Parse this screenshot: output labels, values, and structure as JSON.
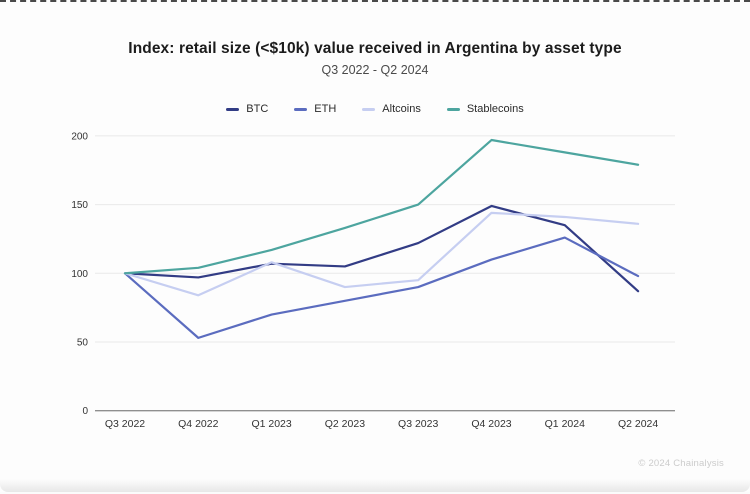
{
  "header": {
    "title": "Index: retail size (<$10k) value received in Argentina by asset type",
    "subtitle": "Q3 2022 - Q2 2024"
  },
  "footer": {
    "credit": "© 2024 Chainalysis"
  },
  "colors": {
    "btc": "#323c85",
    "eth": "#5b6cbf",
    "altcoins": "#c6cef1",
    "stablecoins": "#4da59f",
    "gridline": "#e9e9e9",
    "axis_line": "#8f8f8f",
    "tick_label": "#333333"
  },
  "chart_data": {
    "type": "line",
    "title": "Index: retail size (<$10k) value received in Argentina by asset type",
    "subtitle": "Q3 2022 - Q2 2024",
    "categories": [
      "Q3 2022",
      "Q4 2022",
      "Q1 2023",
      "Q2 2023",
      "Q3 2023",
      "Q4 2023",
      "Q1 2024",
      "Q2 2024"
    ],
    "series": [
      {
        "name": "BTC",
        "color": "#323c85",
        "values": [
          100,
          97,
          107,
          105,
          122,
          149,
          135,
          87
        ]
      },
      {
        "name": "ETH",
        "color": "#5b6cbf",
        "values": [
          100,
          53,
          70,
          80,
          90,
          110,
          126,
          98
        ]
      },
      {
        "name": "Altcoins",
        "color": "#c6cef1",
        "values": [
          100,
          84,
          108,
          90,
          95,
          144,
          141,
          136
        ]
      },
      {
        "name": "Stablecoins",
        "color": "#4da59f",
        "values": [
          100,
          104,
          117,
          133,
          150,
          197,
          188,
          179
        ]
      }
    ],
    "xlabel": "",
    "ylabel": "",
    "ylim": [
      0,
      200
    ],
    "yticks": [
      0,
      50,
      100,
      150,
      200
    ],
    "grid": true,
    "legend_position": "top-center"
  }
}
